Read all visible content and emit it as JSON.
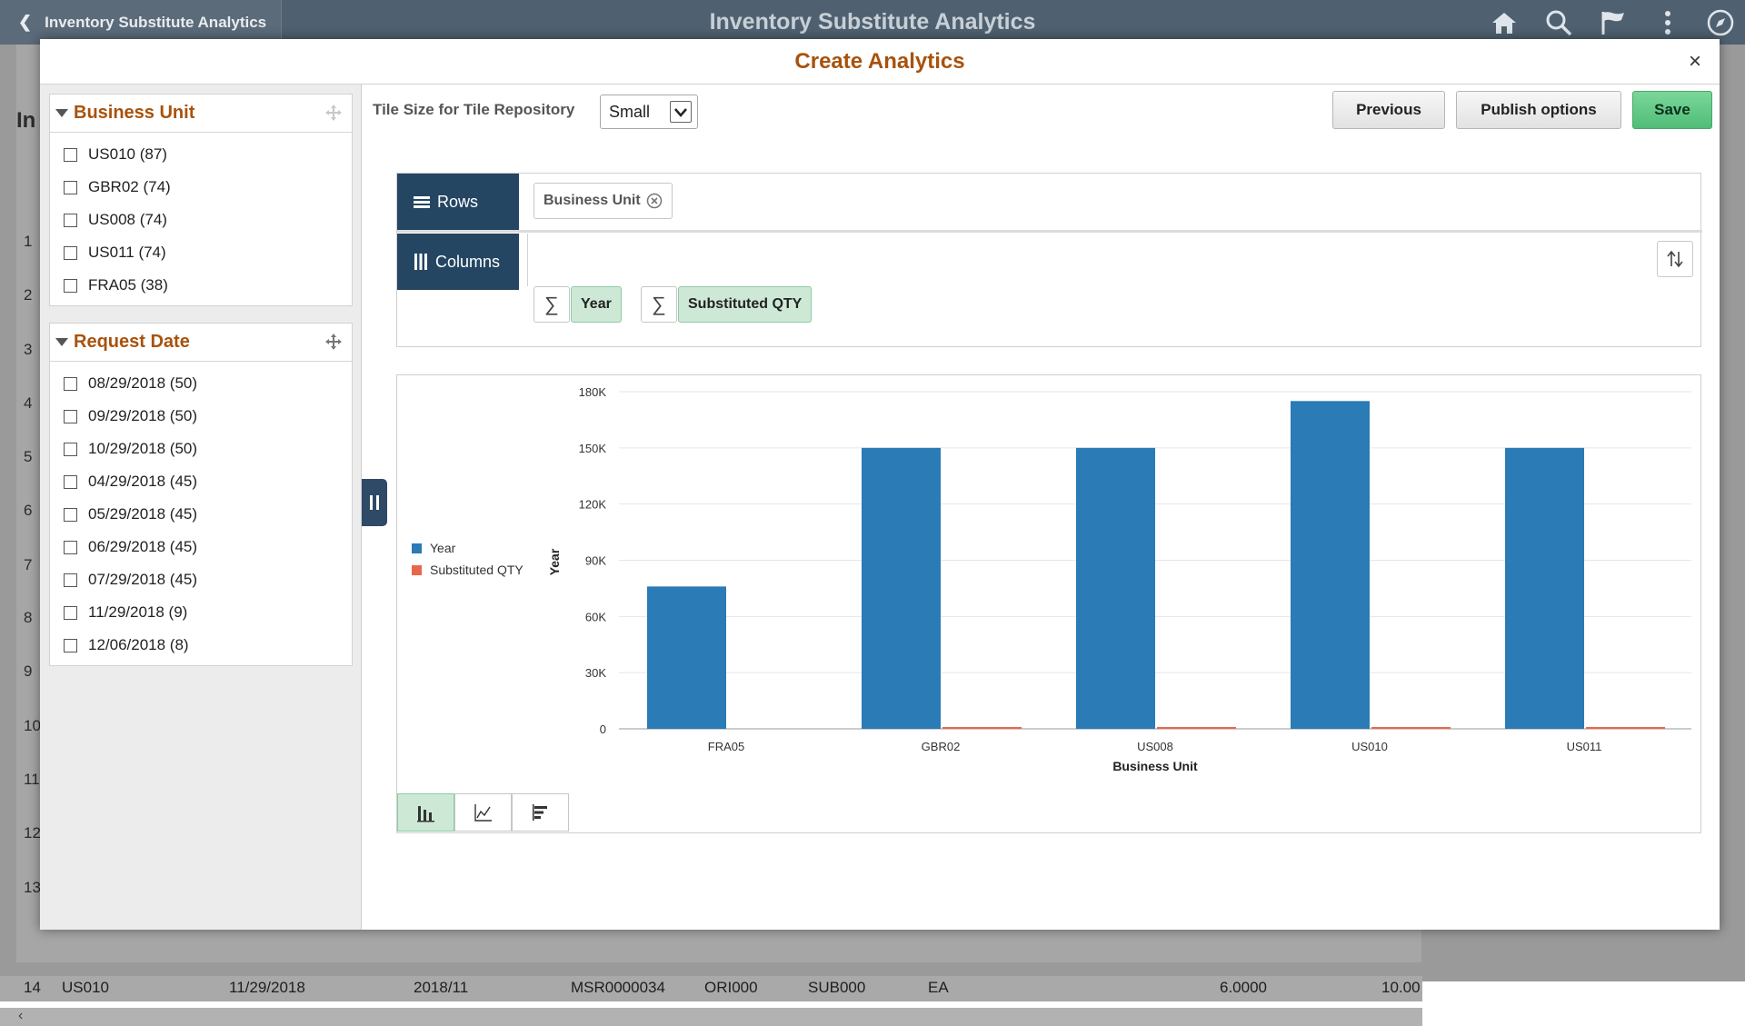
{
  "topbar": {
    "back_label": "Inventory Substitute Analytics",
    "title": "Inventory Substitute Analytics",
    "icons": [
      "home-icon",
      "search-icon",
      "flag-icon",
      "more-icon",
      "compass-icon"
    ]
  },
  "background": {
    "title_fragment": "In",
    "row_numbers": [
      "1",
      "2",
      "3",
      "4",
      "5",
      "6",
      "7",
      "8",
      "9",
      "10",
      "11",
      "12",
      "13"
    ],
    "last_row": {
      "num": "14",
      "unit": "US010",
      "date": "11/29/2018",
      "period": "2018/11",
      "request": "MSR0000034",
      "orig": "ORI000",
      "sub": "SUB000",
      "uom": "EA",
      "qty": "6.0000",
      "qty2": "10.00"
    }
  },
  "modal": {
    "title": "Create Analytics",
    "close_label": "×"
  },
  "facets": [
    {
      "title": "Business Unit",
      "items": [
        "US010 (87)",
        "GBR02 (74)",
        "US008 (74)",
        "US011 (74)",
        "FRA05 (38)"
      ]
    },
    {
      "title": "Request Date",
      "items": [
        "08/29/2018 (50)",
        "09/29/2018 (50)",
        "10/29/2018 (50)",
        "04/29/2018 (45)",
        "05/29/2018 (45)",
        "06/29/2018 (45)",
        "07/29/2018 (45)",
        "11/29/2018 (9)",
        "12/06/2018 (8)"
      ]
    }
  ],
  "toolbar": {
    "tile_size_label": "Tile Size for Tile Repository",
    "tile_size_value": "Small",
    "previous_label": "Previous",
    "publish_label": "Publish options",
    "save_label": "Save"
  },
  "layout_panel": {
    "rows_label": "Rows",
    "columns_label": "Columns",
    "row_chip": "Business Unit",
    "values": [
      "Year",
      "Substituted QTY"
    ],
    "sigma": "∑"
  },
  "chart_data": {
    "type": "bar",
    "categories": [
      "FRA05",
      "GBR02",
      "US008",
      "US010",
      "US011"
    ],
    "series": [
      {
        "name": "Year",
        "values": [
          76000,
          150000,
          150000,
          175000,
          150000
        ],
        "color": "#2a7bb6"
      },
      {
        "name": "Substituted QTY",
        "values": [
          0,
          500,
          500,
          500,
          500
        ],
        "color": "#e8674a"
      }
    ],
    "ylim": [
      0,
      180000
    ],
    "yticks": [
      "0",
      "30K",
      "60K",
      "90K",
      "120K",
      "150K",
      "180K"
    ],
    "ytick_values": [
      0,
      30000,
      60000,
      90000,
      120000,
      150000,
      180000
    ],
    "xlabel": "Business Unit",
    "ylabel": "Year",
    "legend_position": "left",
    "grid": true
  },
  "chart_types": [
    "bar-chart-icon",
    "line-chart-icon",
    "horizontal-bar-icon"
  ]
}
